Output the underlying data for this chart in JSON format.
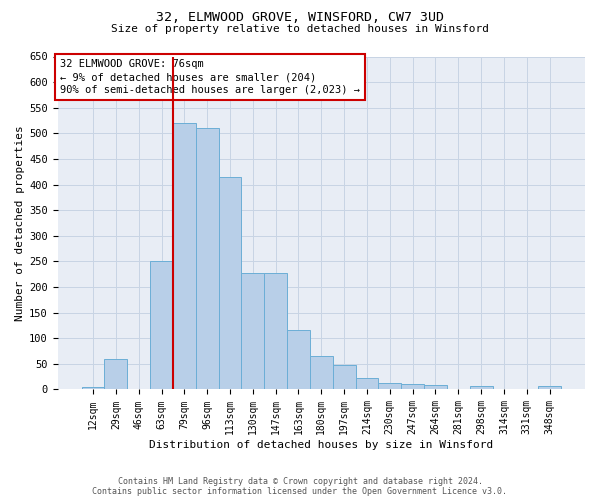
{
  "title_line1": "32, ELMWOOD GROVE, WINSFORD, CW7 3UD",
  "title_line2": "Size of property relative to detached houses in Winsford",
  "xlabel": "Distribution of detached houses by size in Winsford",
  "ylabel": "Number of detached properties",
  "footer_line1": "Contains HM Land Registry data © Crown copyright and database right 2024.",
  "footer_line2": "Contains public sector information licensed under the Open Government Licence v3.0.",
  "annotation_line1": "32 ELMWOOD GROVE: 76sqm",
  "annotation_line2": "← 9% of detached houses are smaller (204)",
  "annotation_line3": "90% of semi-detached houses are larger (2,023) →",
  "bar_labels": [
    "12sqm",
    "29sqm",
    "46sqm",
    "63sqm",
    "79sqm",
    "96sqm",
    "113sqm",
    "130sqm",
    "147sqm",
    "163sqm",
    "180sqm",
    "197sqm",
    "214sqm",
    "230sqm",
    "247sqm",
    "264sqm",
    "281sqm",
    "298sqm",
    "314sqm",
    "331sqm",
    "348sqm"
  ],
  "bar_values": [
    5,
    60,
    0,
    250,
    520,
    510,
    415,
    228,
    228,
    117,
    65,
    47,
    22,
    12,
    10,
    9,
    0,
    7,
    0,
    0,
    7
  ],
  "bar_color": "#b8cfe8",
  "bar_edge_color": "#6baed6",
  "grid_color": "#c8d4e4",
  "background_color": "#e8edf5",
  "vline_x": 3.5,
  "vline_color": "#cc0000",
  "annotation_box_edgecolor": "#cc0000",
  "ylim_max": 650,
  "yticks": [
    0,
    50,
    100,
    150,
    200,
    250,
    300,
    350,
    400,
    450,
    500,
    550,
    600,
    650
  ]
}
